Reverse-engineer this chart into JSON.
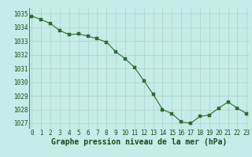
{
  "hours": [
    0,
    1,
    2,
    3,
    4,
    5,
    6,
    7,
    8,
    9,
    10,
    11,
    12,
    13,
    14,
    15,
    16,
    17,
    18,
    19,
    20,
    21,
    22,
    23
  ],
  "pressure": [
    1034.8,
    1034.55,
    1034.25,
    1033.75,
    1033.45,
    1033.5,
    1033.35,
    1033.15,
    1032.9,
    1032.2,
    1031.7,
    1031.05,
    1030.1,
    1029.1,
    1028.0,
    1027.7,
    1027.1,
    1027.0,
    1027.5,
    1027.6,
    1028.1,
    1028.55,
    1028.1,
    1027.7
  ],
  "line_color": "#2d6a2d",
  "marker_color": "#2d6a2d",
  "bg_color": "#c5ece8",
  "grid_color": "#b0cfc8",
  "xlabel": "Graphe pression niveau de la mer (hPa)",
  "xlabel_color": "#1a4a1a",
  "tick_color": "#1a4a1a",
  "ylim": [
    1026.6,
    1035.4
  ],
  "yticks": [
    1027,
    1028,
    1029,
    1030,
    1031,
    1032,
    1033,
    1034,
    1035
  ],
  "xticks": [
    0,
    1,
    2,
    3,
    4,
    5,
    6,
    7,
    8,
    9,
    10,
    11,
    12,
    13,
    14,
    15,
    16,
    17,
    18,
    19,
    20,
    21,
    22,
    23
  ],
  "xtick_labels": [
    "0",
    "1",
    "2",
    "3",
    "4",
    "5",
    "6",
    "7",
    "8",
    "9",
    "10",
    "11",
    "12",
    "13",
    "14",
    "15",
    "16",
    "17",
    "18",
    "19",
    "20",
    "21",
    "22",
    "23"
  ],
  "tick_fontsize": 5.5,
  "xlabel_fontsize": 7.0,
  "line_width": 0.8,
  "marker_size": 2.2
}
